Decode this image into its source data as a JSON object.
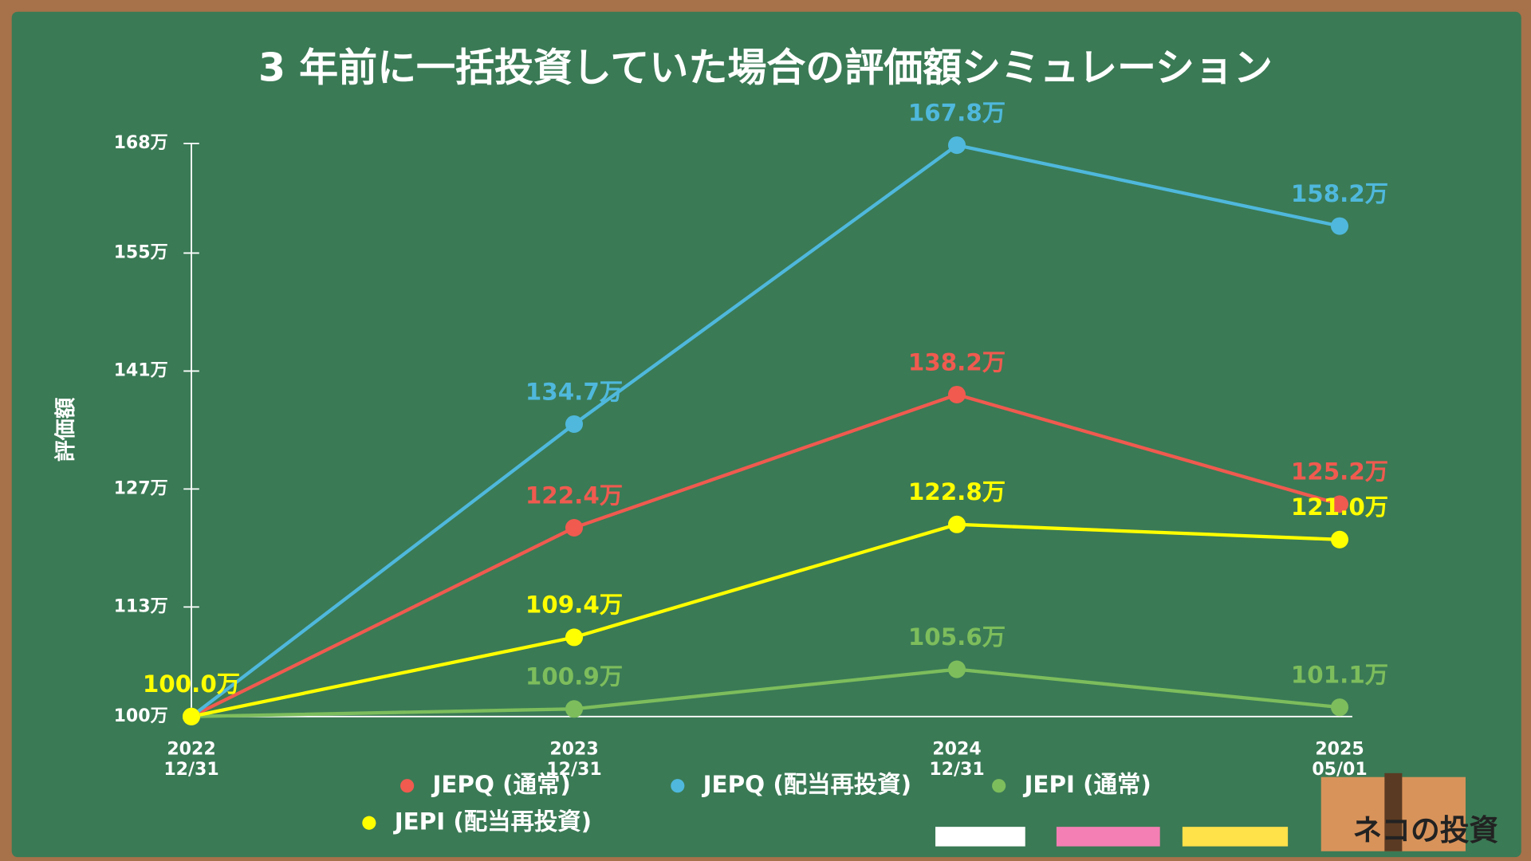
{
  "chart_data": {
    "type": "line",
    "title": "3 年前に一括投資していた場合の評価額シミュレーション",
    "y_label": "評価額",
    "categories": [
      "2022 12/31",
      "2023 12/31",
      "2024 12/31",
      "2025 05/01"
    ],
    "ylim": [
      100,
      168
    ],
    "yticks": [
      {
        "value": 100,
        "label": "100万"
      },
      {
        "value": 113,
        "label": "113万"
      },
      {
        "value": 127,
        "label": "127万"
      },
      {
        "value": 141,
        "label": "141万"
      },
      {
        "value": 155,
        "label": "155万"
      },
      {
        "value": 168,
        "label": "168万"
      }
    ],
    "grid": false,
    "series": [
      {
        "name": "JEPQ (通常)",
        "color": "#f05a4f",
        "values": [
          100,
          122.4,
          138.2,
          125.2
        ],
        "value_labels": [
          null,
          "122.4万",
          "138.2万",
          "125.2万"
        ]
      },
      {
        "name": "JEPQ (配当再投資)",
        "color": "#4fb8dc",
        "values": [
          100,
          134.7,
          167.8,
          158.2
        ],
        "value_labels": [
          null,
          "134.7万",
          "167.8万",
          "158.2万"
        ]
      },
      {
        "name": "JEPI (通常)",
        "color": "#7dbd5c",
        "values": [
          100,
          100.9,
          105.6,
          101.1
        ],
        "value_labels": [
          null,
          "100.9万",
          "105.6万",
          "101.1万"
        ]
      },
      {
        "name": "JEPI (配当再投資)",
        "color": "#ffff00",
        "values": [
          100,
          109.4,
          122.8,
          121.0
        ],
        "value_labels": [
          "100.0万",
          "109.4万",
          "122.8万",
          "121.0万"
        ]
      }
    ]
  },
  "brand": "ネコの投資"
}
